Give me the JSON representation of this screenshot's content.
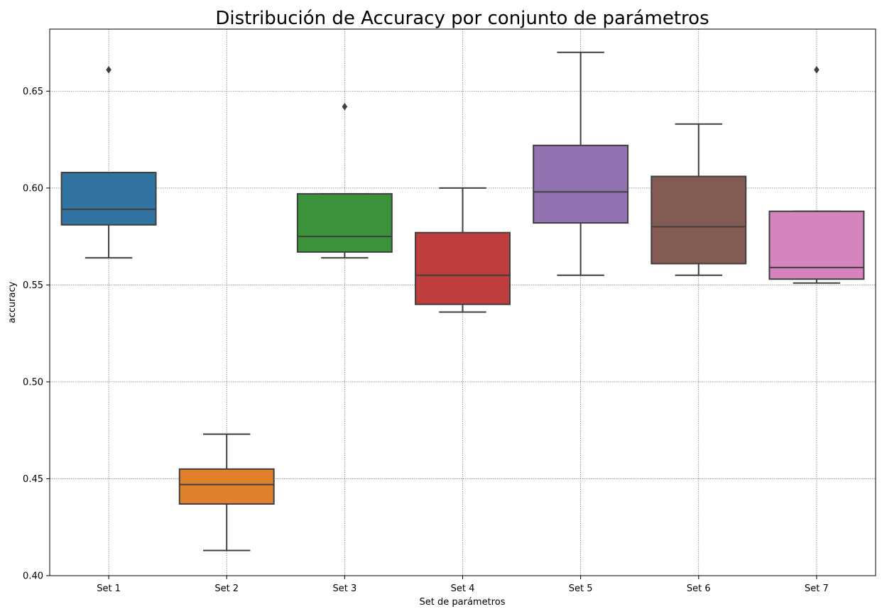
{
  "chart_data": {
    "type": "box",
    "title": "Distribución de Accuracy por conjunto de parámetros",
    "xlabel": "Set de parámetros",
    "ylabel": "accuracy",
    "ylim": [
      0.4,
      0.682
    ],
    "yticks": [
      "0.40",
      "0.45",
      "0.50",
      "0.55",
      "0.60",
      "0.65"
    ],
    "grid": true,
    "categories": [
      "Set 1",
      "Set 2",
      "Set 3",
      "Set 4",
      "Set 5",
      "Set 6",
      "Set 7"
    ],
    "colors": [
      "#3274a1",
      "#e1812c",
      "#3a923a",
      "#c03d3e",
      "#9372b2",
      "#845b53",
      "#d684bd"
    ],
    "boxes": [
      {
        "min": 0.564,
        "q1": 0.581,
        "median": 0.589,
        "q3": 0.608,
        "max": 0.608,
        "outliers": [
          0.661
        ]
      },
      {
        "min": 0.413,
        "q1": 0.437,
        "median": 0.447,
        "q3": 0.455,
        "max": 0.473,
        "outliers": []
      },
      {
        "min": 0.564,
        "q1": 0.567,
        "median": 0.575,
        "q3": 0.597,
        "max": 0.597,
        "outliers": [
          0.642
        ]
      },
      {
        "min": 0.536,
        "q1": 0.54,
        "median": 0.555,
        "q3": 0.577,
        "max": 0.6,
        "outliers": []
      },
      {
        "min": 0.555,
        "q1": 0.582,
        "median": 0.598,
        "q3": 0.622,
        "max": 0.67,
        "outliers": []
      },
      {
        "min": 0.555,
        "q1": 0.561,
        "median": 0.58,
        "q3": 0.606,
        "max": 0.633,
        "outliers": []
      },
      {
        "min": 0.551,
        "q1": 0.553,
        "median": 0.559,
        "q3": 0.588,
        "max": 0.588,
        "outliers": [
          0.661
        ]
      }
    ]
  }
}
